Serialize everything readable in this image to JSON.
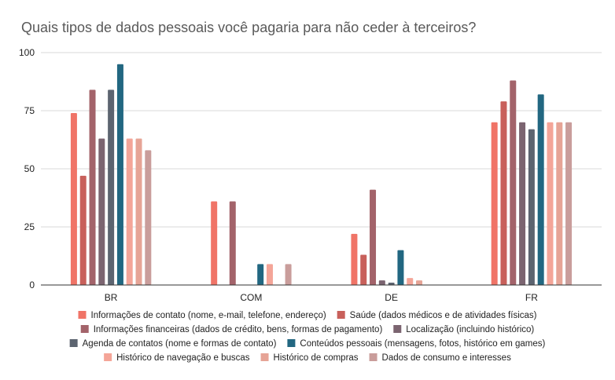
{
  "chart_data": {
    "type": "bar",
    "title": "Quais tipos de dados pessoais você pagaria para não ceder à terceiros?",
    "xlabel": "",
    "ylabel": "",
    "ylim": [
      0,
      100
    ],
    "yticks": [
      0,
      25,
      50,
      75,
      100
    ],
    "grid": true,
    "legend_position": "bottom",
    "categories": [
      "BR",
      "COM",
      "DE",
      "FR"
    ],
    "series": [
      {
        "name": "Informações de contato (nome, e-mail, telefone, endereço)",
        "color": "#f07467",
        "values": [
          74,
          36,
          22,
          70
        ]
      },
      {
        "name": "Saúde (dados médicos e de atividades físicas)",
        "color": "#c8605b",
        "values": [
          47,
          0,
          13,
          79
        ]
      },
      {
        "name": "Informações financeiras (dados de crédito, bens, formas de pagamento)",
        "color": "#a3636a",
        "values": [
          84,
          36,
          41,
          88
        ]
      },
      {
        "name": "Localização (incluindo histórico)",
        "color": "#7b6470",
        "values": [
          63,
          0,
          2,
          70
        ]
      },
      {
        "name": "Agenda de contatos (nome e formas de contato)",
        "color": "#5c6470",
        "values": [
          84,
          0,
          1,
          67
        ]
      },
      {
        "name": "Conteúdos pessoais (mensagens, fotos, histórico em games)",
        "color": "#226781",
        "values": [
          95,
          9,
          15,
          82
        ]
      },
      {
        "name": "Histórico de navegação e buscas",
        "color": "#f4a598",
        "values": [
          63,
          9,
          3,
          70
        ]
      },
      {
        "name": "Histórico de compras",
        "color": "#e6a496",
        "values": [
          63,
          0,
          2,
          70
        ]
      },
      {
        "name": "Dados de consumo e interesses",
        "color": "#c99d9b",
        "values": [
          58,
          9,
          0,
          70
        ]
      }
    ]
  }
}
